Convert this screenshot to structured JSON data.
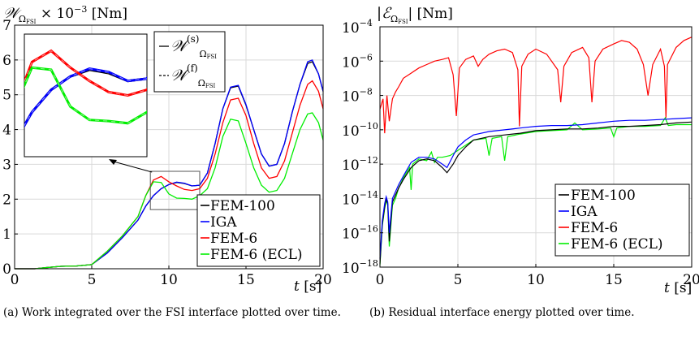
{
  "chart_data": [
    {
      "type": "line",
      "panel_tag": "(a)",
      "caption": "Work integrated over the FSI interface plotted over time.",
      "ylabel_parts": {
        "main": "𝒲",
        "sub": "Ω",
        "subsub": "FSI",
        "rest": " × 10",
        "exp": "−3",
        "unit": " [Nm]"
      },
      "xlabel_parts": {
        "var": "t",
        "unit": " [s]"
      },
      "xlim": [
        0,
        20
      ],
      "ylim": [
        0,
        7
      ],
      "xticks": [
        "0",
        "5",
        "10",
        "15",
        "20"
      ],
      "yticks": [
        "0",
        "1",
        "2",
        "3",
        "4",
        "5",
        "6",
        "7"
      ],
      "grid": true,
      "legend_position": "bottom-right",
      "inset_legend": [
        {
          "style": "solid",
          "main": "𝒲",
          "sup": "(s)",
          "sub": "Ω",
          "subsub": "FSI"
        },
        {
          "style": "dashed",
          "main": "𝒲",
          "sup": "(f)",
          "sub": "Ω",
          "subsub": "FSI"
        }
      ],
      "inset_zoom": {
        "x": [
          8.8,
          12.0
        ],
        "y": [
          1.7,
          2.8
        ]
      },
      "series": [
        {
          "name": "FEM-100",
          "color": "#000000",
          "x": [
            0,
            1.3,
            2,
            3,
            4,
            5,
            6,
            7,
            8,
            8.5,
            9,
            9.5,
            10,
            10.5,
            11,
            11.5,
            12,
            12.5,
            13,
            13.5,
            14,
            14.5,
            15,
            15.5,
            16,
            16.5,
            17,
            17.5,
            18,
            18.5,
            19,
            19.3,
            19.7,
            20
          ],
          "y": [
            0,
            0,
            0.03,
            0.07,
            0.08,
            0.12,
            0.45,
            0.9,
            1.4,
            1.8,
            2.1,
            2.3,
            2.42,
            2.48,
            2.45,
            2.38,
            2.4,
            2.75,
            3.6,
            4.6,
            5.2,
            5.25,
            4.7,
            4.0,
            3.3,
            2.95,
            3.0,
            3.6,
            4.5,
            5.3,
            5.9,
            5.95,
            5.6,
            5.1
          ]
        },
        {
          "name": "IGA",
          "color": "#0000ff",
          "x": [
            0,
            1.3,
            2,
            3,
            4,
            5,
            6,
            7,
            8,
            8.5,
            9,
            9.5,
            10,
            10.5,
            11,
            11.5,
            12,
            12.5,
            13,
            13.5,
            14,
            14.5,
            15,
            15.5,
            16,
            16.5,
            17,
            17.5,
            18,
            18.5,
            19,
            19.3,
            19.7,
            20
          ],
          "y": [
            0,
            0,
            0.03,
            0.07,
            0.08,
            0.12,
            0.45,
            0.9,
            1.4,
            1.8,
            2.1,
            2.3,
            2.42,
            2.49,
            2.46,
            2.38,
            2.4,
            2.75,
            3.6,
            4.6,
            5.22,
            5.27,
            4.72,
            4.0,
            3.3,
            2.95,
            3.0,
            3.6,
            4.5,
            5.3,
            5.95,
            6.0,
            5.6,
            5.1
          ]
        },
        {
          "name": "FEM-6",
          "color": "#ff0000",
          "x": [
            0,
            1.3,
            2,
            3,
            4,
            5,
            6,
            7,
            8,
            8.5,
            9,
            9.5,
            10,
            10.5,
            11,
            11.5,
            12,
            12.5,
            13,
            13.5,
            14,
            14.5,
            15,
            15.5,
            16,
            16.5,
            17,
            17.5,
            18,
            18.5,
            19,
            19.3,
            19.7,
            20
          ],
          "y": [
            0,
            0,
            0.03,
            0.07,
            0.08,
            0.12,
            0.5,
            0.95,
            1.5,
            2.1,
            2.55,
            2.65,
            2.5,
            2.38,
            2.28,
            2.25,
            2.3,
            2.6,
            3.3,
            4.2,
            4.85,
            4.9,
            4.4,
            3.6,
            2.9,
            2.6,
            2.65,
            3.1,
            3.9,
            4.7,
            5.3,
            5.4,
            5.1,
            4.6
          ]
        },
        {
          "name": "FEM-6 (ECL)",
          "color": "#00ee00",
          "x": [
            0,
            1.3,
            2,
            3,
            4,
            5,
            6,
            7,
            8,
            8.5,
            9,
            9.5,
            10,
            10.5,
            11,
            11.5,
            12,
            12.5,
            13,
            13.5,
            14,
            14.5,
            15,
            15.5,
            16,
            16.5,
            17,
            17.5,
            18,
            18.5,
            19,
            19.3,
            19.7,
            20
          ],
          "y": [
            0,
            0,
            0.03,
            0.07,
            0.08,
            0.12,
            0.5,
            0.95,
            1.5,
            2.1,
            2.5,
            2.48,
            2.15,
            2.03,
            2.02,
            2.0,
            2.1,
            2.3,
            2.9,
            3.8,
            4.3,
            4.25,
            3.6,
            2.9,
            2.4,
            2.2,
            2.25,
            2.6,
            3.3,
            4.0,
            4.45,
            4.48,
            4.2,
            3.7
          ]
        }
      ]
    },
    {
      "type": "line",
      "panel_tag": "(b)",
      "caption": "Residual interface energy plotted over time.",
      "ylabel_parts": {
        "pre": "|",
        "main": "ℰ",
        "sub": "Ω",
        "subsub": "FSI",
        "rest": "| [Nm]"
      },
      "xlabel_parts": {
        "var": "t",
        "unit": " [s]"
      },
      "xlim": [
        0,
        20
      ],
      "ylim": [
        -18,
        -4
      ],
      "yscale": "log",
      "xticks": [
        "0",
        "5",
        "10",
        "15",
        "20"
      ],
      "yticks": [
        {
          "base": "10",
          "exp": "−4",
          "v": -4
        },
        {
          "base": "10",
          "exp": "−6",
          "v": -6
        },
        {
          "base": "10",
          "exp": "−8",
          "v": -8
        },
        {
          "base": "10",
          "exp": "−10",
          "v": -10
        },
        {
          "base": "10",
          "exp": "−12",
          "v": -12
        },
        {
          "base": "10",
          "exp": "−14",
          "v": -14
        },
        {
          "base": "10",
          "exp": "−16",
          "v": -16
        },
        {
          "base": "10",
          "exp": "−18",
          "v": -18
        }
      ],
      "grid": true,
      "legend_position": "bottom-right",
      "series": [
        {
          "name": "FEM-100",
          "color": "#000000",
          "x": [
            0,
            0.15,
            0.3,
            0.4,
            0.5,
            0.6,
            0.8,
            1.0,
            1.2,
            1.5,
            2,
            2.5,
            3,
            3.5,
            4,
            4.3,
            4.7,
            5,
            5.5,
            6,
            7,
            8,
            9,
            10,
            11,
            12,
            13,
            14,
            15,
            16,
            17,
            18,
            19,
            20
          ],
          "y": [
            -17.8,
            -15.5,
            -14.5,
            -14.0,
            -14.3,
            -16.5,
            -14.2,
            -13.8,
            -13.4,
            -12.9,
            -12.2,
            -11.8,
            -11.7,
            -11.8,
            -12.2,
            -12.5,
            -12.0,
            -11.5,
            -11.0,
            -10.6,
            -10.4,
            -10.3,
            -10.2,
            -10.05,
            -10.0,
            -9.95,
            -9.95,
            -9.9,
            -9.8,
            -9.8,
            -9.75,
            -9.7,
            -9.6,
            -9.55
          ]
        },
        {
          "name": "IGA",
          "color": "#0000ff",
          "x": [
            0,
            0.15,
            0.3,
            0.4,
            0.5,
            0.6,
            0.8,
            1.0,
            1.2,
            1.5,
            2,
            2.5,
            3,
            3.5,
            4,
            4.3,
            4.7,
            5,
            5.5,
            6,
            7,
            8,
            9,
            10,
            11,
            12,
            13,
            14,
            15,
            16,
            17,
            18,
            19,
            20
          ],
          "y": [
            -17.5,
            -15.3,
            -14.3,
            -13.9,
            -14.2,
            -16.0,
            -14.0,
            -13.6,
            -13.2,
            -12.7,
            -11.9,
            -11.6,
            -11.6,
            -11.7,
            -12.0,
            -12.2,
            -11.5,
            -11.0,
            -10.6,
            -10.3,
            -10.1,
            -10.0,
            -9.9,
            -9.8,
            -9.75,
            -9.75,
            -9.7,
            -9.6,
            -9.5,
            -9.45,
            -9.45,
            -9.4,
            -9.35,
            -9.3
          ]
        },
        {
          "name": "FEM-6",
          "color": "#ff0000",
          "x": [
            0,
            0.2,
            0.3,
            0.45,
            0.6,
            0.8,
            1.0,
            1.2,
            1.5,
            2,
            2.5,
            3,
            3.5,
            4,
            4.4,
            4.7,
            4.9,
            5.1,
            5.5,
            6,
            6.3,
            6.6,
            7,
            7.5,
            8,
            8.5,
            8.85,
            8.95,
            9.1,
            9.5,
            10,
            10.7,
            11.4,
            11.6,
            11.8,
            12.3,
            13,
            13.4,
            13.6,
            13.8,
            14.3,
            15,
            15.5,
            16,
            16.5,
            16.9,
            17.2,
            17.5,
            18.0,
            18.25,
            18.35,
            18.45,
            19,
            19.5,
            20
          ],
          "y": [
            -8.8,
            -8.2,
            -10.2,
            -8.0,
            -9.5,
            -8.2,
            -7.8,
            -7.5,
            -7.0,
            -6.7,
            -6.4,
            -6.2,
            -6.0,
            -5.9,
            -5.8,
            -6.8,
            -9.2,
            -6.4,
            -5.9,
            -5.7,
            -6.3,
            -5.9,
            -5.6,
            -5.4,
            -5.3,
            -5.5,
            -6.5,
            -9.8,
            -6.3,
            -5.6,
            -5.3,
            -5.6,
            -6.5,
            -8.4,
            -6.3,
            -5.5,
            -5.2,
            -5.8,
            -8.4,
            -6.0,
            -5.3,
            -5.0,
            -4.8,
            -4.9,
            -5.3,
            -6.2,
            -8.0,
            -6.2,
            -5.3,
            -6.3,
            -9.3,
            -6.2,
            -5.2,
            -4.8,
            -4.6
          ]
        },
        {
          "name": "FEM-6 (ECL)",
          "color": "#00ee00",
          "x": [
            0,
            0.15,
            0.3,
            0.4,
            0.5,
            0.6,
            0.8,
            1.0,
            1.2,
            1.5,
            1.9,
            2,
            2.1,
            2.5,
            3,
            3.3,
            3.5,
            3.7,
            4,
            4.5,
            5,
            5.5,
            6,
            6.8,
            7,
            7.2,
            7.8,
            8.0,
            8.2,
            9,
            10,
            11,
            12,
            12.5,
            13,
            14,
            14.8,
            15.0,
            15.2,
            16,
            17,
            18,
            18.3,
            18.5,
            19,
            20
          ],
          "y": [
            -17.9,
            -15.6,
            -14.6,
            -14.1,
            -14.4,
            -16.8,
            -14.4,
            -14.0,
            -13.4,
            -12.8,
            -12.2,
            -13.5,
            -12.0,
            -11.7,
            -11.8,
            -11.3,
            -11.9,
            -11.6,
            -11.6,
            -11.5,
            -11.2,
            -10.9,
            -10.6,
            -10.5,
            -11.5,
            -10.5,
            -10.4,
            -11.8,
            -10.4,
            -10.25,
            -10.1,
            -10.05,
            -10.0,
            -9.6,
            -10.0,
            -9.95,
            -9.9,
            -10.4,
            -9.9,
            -9.8,
            -9.8,
            -9.75,
            -9.3,
            -9.75,
            -9.7,
            -9.7
          ]
        }
      ]
    }
  ]
}
